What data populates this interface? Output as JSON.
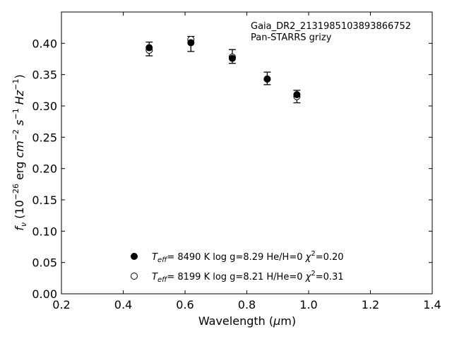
{
  "chart_data": {
    "type": "scatter",
    "xlabel": "Wavelength (μm)",
    "ylabel": "f_ν (10^-26 erg cm^-2 s^-1 Hz^-1)",
    "xlim": [
      0.2,
      1.4
    ],
    "ylim": [
      0.0,
      0.45
    ],
    "x_ticks": [
      "0.2",
      "0.4",
      "0.6",
      "0.8",
      "1.0",
      "1.2",
      "1.4"
    ],
    "y_ticks": [
      "0.00",
      "0.05",
      "0.10",
      "0.15",
      "0.20",
      "0.25",
      "0.30",
      "0.35",
      "0.40"
    ],
    "annotation": [
      "Gaia_DR2_2131985103893866752",
      "Pan-STARRS grizy"
    ],
    "observed": {
      "x": [
        0.484,
        0.619,
        0.753,
        0.866,
        0.962
      ],
      "y": [
        0.391,
        0.399,
        0.379,
        0.344,
        0.315
      ],
      "err": [
        0.011,
        0.012,
        0.011,
        0.01,
        0.01
      ]
    },
    "series": [
      {
        "name": "T_eff=  8490 K  log g=8.29  He/H=0  χ²=0.20",
        "marker": "filled-circle",
        "x": [
          0.484,
          0.619,
          0.753,
          0.866,
          0.962
        ],
        "y": [
          0.393,
          0.401,
          0.376,
          0.343,
          0.318
        ]
      },
      {
        "name": "T_eff=  8199 K  log g=8.21  H/He=0  χ²=0.31",
        "marker": "open-circle",
        "x": [
          0.484,
          0.619,
          0.753,
          0.866,
          0.962
        ],
        "y": [
          0.389,
          0.406,
          0.378,
          0.343,
          0.315
        ]
      }
    ],
    "legend_placement": "lower-center",
    "grid": false
  }
}
